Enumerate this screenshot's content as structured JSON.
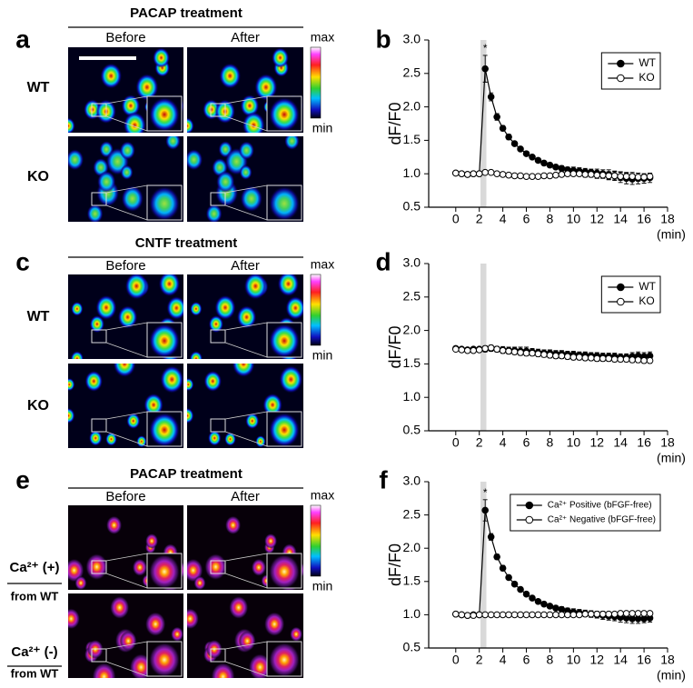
{
  "panel_labels": [
    "a",
    "b",
    "c",
    "d",
    "e",
    "f"
  ],
  "image_panels": [
    {
      "title": "PACAP treatment",
      "columns": [
        "Before",
        "After"
      ],
      "rows": [
        "WT",
        "KO"
      ],
      "scale": {
        "max": "max",
        "min": "min"
      }
    },
    {
      "title": "CNTF treatment",
      "columns": [
        "Before",
        "After"
      ],
      "rows": [
        "WT",
        "KO"
      ],
      "scale": {
        "max": "max",
        "min": "min"
      }
    },
    {
      "title": "PACAP treatment",
      "columns": [
        "Before",
        "After"
      ],
      "rows": [
        {
          "label": "Ca²⁺ (+)",
          "sublabel": "from WT"
        },
        {
          "label": "Ca²⁺ (-)",
          "sublabel": "from WT"
        }
      ],
      "scale": {
        "max": "max",
        "min": "min"
      }
    }
  ],
  "chart_data": [
    {
      "type": "line",
      "xlabel": "(min)",
      "ylabel": "dF/F0",
      "legend": "upper right",
      "highlight_x": [
        2.1,
        2.6
      ],
      "annotation": {
        "text": "*",
        "x": 2.5
      },
      "x": [
        0,
        0.5,
        1,
        1.5,
        2,
        2.5,
        3,
        3.5,
        4,
        4.5,
        5,
        5.5,
        6,
        6.5,
        7,
        7.5,
        8,
        8.5,
        9,
        9.5,
        10,
        10.5,
        11,
        11.5,
        12,
        12.5,
        13,
        13.5,
        14,
        14.5,
        15,
        15.5,
        16,
        16.5
      ],
      "xlim": [
        -2.3,
        18
      ],
      "xticks": [
        0,
        2,
        4,
        6,
        8,
        10,
        12,
        14,
        16,
        18
      ],
      "ylim": [
        0.5,
        3.0
      ],
      "yticks": [
        0.5,
        {
          "value": 1,
          "label": "1.0"
        },
        1.5,
        {
          "value": 2,
          "label": "2.0"
        },
        2.5,
        {
          "value": 3,
          "label": "3.0"
        }
      ],
      "series": [
        {
          "name": "WT",
          "color": "#000000",
          "marker": "filled",
          "values": [
            1.01,
            1.0,
            0.99,
            1.0,
            1.0,
            2.57,
            2.15,
            1.85,
            1.68,
            1.55,
            1.45,
            1.37,
            1.3,
            1.25,
            1.2,
            1.16,
            1.13,
            1.1,
            1.08,
            1.06,
            1.05,
            1.04,
            1.03,
            1.02,
            1.01,
            1.0,
            0.99,
            0.97,
            0.95,
            0.93,
            0.92,
            0.93,
            0.93,
            0.94
          ],
          "errors": [
            0.02,
            0.02,
            0.02,
            0.02,
            0.02,
            0.2,
            0.06,
            0.05,
            0.04,
            0.04,
            0.03,
            0.03,
            0.03,
            0.03,
            0.03,
            0.03,
            0.03,
            0.03,
            0.04,
            0.04,
            0.05,
            0.05,
            0.05,
            0.05,
            0.06,
            0.06,
            0.07,
            0.07,
            0.08,
            0.08,
            0.08,
            0.08,
            0.07,
            0.07
          ]
        },
        {
          "name": "KO",
          "color": "#000000",
          "marker": "open",
          "values": [
            1.01,
            1.0,
            0.99,
            1.0,
            1.0,
            1.02,
            1.02,
            1.0,
            0.99,
            0.98,
            0.97,
            0.97,
            0.96,
            0.96,
            0.96,
            0.97,
            0.97,
            0.98,
            0.99,
            1.0,
            1.0,
            1.0,
            0.99,
            0.99,
            0.98,
            0.98,
            0.97,
            0.97,
            0.96,
            0.96,
            0.96,
            0.95,
            0.95,
            0.96
          ],
          "errors": [
            0.02,
            0.02,
            0.02,
            0.02,
            0.02,
            0.02,
            0.02,
            0.02,
            0.02,
            0.02,
            0.02,
            0.02,
            0.02,
            0.02,
            0.02,
            0.02,
            0.02,
            0.02,
            0.02,
            0.02,
            0.03,
            0.03,
            0.04,
            0.04,
            0.05,
            0.05,
            0.06,
            0.06,
            0.06,
            0.06,
            0.06,
            0.06,
            0.05,
            0.05
          ]
        }
      ]
    },
    {
      "type": "line",
      "xlabel": "(min)",
      "ylabel": "dF/F0",
      "legend": "upper right",
      "highlight_x": [
        2.1,
        2.6
      ],
      "x": [
        0,
        0.5,
        1,
        1.5,
        2,
        2.5,
        3,
        3.5,
        4,
        4.5,
        5,
        5.5,
        6,
        6.5,
        7,
        7.5,
        8,
        8.5,
        9,
        9.5,
        10,
        10.5,
        11,
        11.5,
        12,
        12.5,
        13,
        13.5,
        14,
        14.5,
        15,
        15.5,
        16,
        16.5
      ],
      "xlim": [
        -2.3,
        18
      ],
      "xticks": [
        0,
        2,
        4,
        6,
        8,
        10,
        12,
        14,
        16,
        18
      ],
      "ylim": [
        0.5,
        3.0
      ],
      "yticks": [
        0.5,
        {
          "value": 1,
          "label": "1.0"
        },
        1.5,
        {
          "value": 2,
          "label": "2.0"
        },
        2.5,
        {
          "value": 3,
          "label": "3.0"
        }
      ],
      "series": [
        {
          "name": "WT",
          "color": "#000000",
          "marker": "filled",
          "values": [
            1.73,
            1.72,
            1.71,
            1.72,
            1.72,
            1.72,
            1.73,
            1.72,
            1.71,
            1.7,
            1.7,
            1.69,
            1.69,
            1.68,
            1.67,
            1.66,
            1.66,
            1.65,
            1.65,
            1.64,
            1.64,
            1.63,
            1.63,
            1.62,
            1.62,
            1.61,
            1.61,
            1.61,
            1.6,
            1.6,
            1.61,
            1.62,
            1.61,
            1.62
          ],
          "errors": [
            0.03,
            0.03,
            0.03,
            0.03,
            0.03,
            0.04,
            0.04,
            0.04,
            0.05,
            0.05,
            0.05,
            0.06,
            0.06,
            0.05,
            0.05,
            0.05,
            0.05,
            0.05,
            0.05,
            0.05,
            0.05,
            0.05,
            0.05,
            0.05,
            0.05,
            0.05,
            0.05,
            0.05,
            0.05,
            0.05,
            0.06,
            0.06,
            0.06,
            0.06
          ]
        },
        {
          "name": "KO",
          "color": "#000000",
          "marker": "open",
          "values": [
            1.72,
            1.71,
            1.7,
            1.7,
            1.71,
            1.73,
            1.74,
            1.72,
            1.7,
            1.69,
            1.68,
            1.67,
            1.66,
            1.66,
            1.65,
            1.64,
            1.63,
            1.62,
            1.62,
            1.61,
            1.6,
            1.6,
            1.59,
            1.59,
            1.58,
            1.58,
            1.58,
            1.57,
            1.57,
            1.57,
            1.56,
            1.56,
            1.55,
            1.55
          ],
          "errors": [
            0.03,
            0.03,
            0.03,
            0.03,
            0.03,
            0.04,
            0.04,
            0.04,
            0.04,
            0.04,
            0.04,
            0.04,
            0.04,
            0.04,
            0.04,
            0.04,
            0.04,
            0.04,
            0.04,
            0.04,
            0.04,
            0.04,
            0.04,
            0.04,
            0.04,
            0.04,
            0.04,
            0.04,
            0.04,
            0.04,
            0.04,
            0.04,
            0.04,
            0.04
          ]
        }
      ]
    },
    {
      "type": "line",
      "xlabel": "(min)",
      "ylabel": "dF/F0",
      "legend": "upper right",
      "highlight_x": [
        2.1,
        2.6
      ],
      "annotation": {
        "text": "*",
        "x": 2.5
      },
      "x": [
        0,
        0.5,
        1,
        1.5,
        2,
        2.5,
        3,
        3.5,
        4,
        4.5,
        5,
        5.5,
        6,
        6.5,
        7,
        7.5,
        8,
        8.5,
        9,
        9.5,
        10,
        10.5,
        11,
        11.5,
        12,
        12.5,
        13,
        13.5,
        14,
        14.5,
        15,
        15.5,
        16,
        16.5
      ],
      "xlim": [
        -2.3,
        18
      ],
      "xticks": [
        0,
        2,
        4,
        6,
        8,
        10,
        12,
        14,
        16,
        18
      ],
      "ylim": [
        0.5,
        3.0
      ],
      "yticks": [
        0.5,
        {
          "value": 1,
          "label": "1.0"
        },
        1.5,
        {
          "value": 2,
          "label": "2.0"
        },
        2.5,
        {
          "value": 3,
          "label": "3.0"
        }
      ],
      "series": [
        {
          "name": "Ca²⁺ Positive (bFGF-free)",
          "color": "#000000",
          "marker": "filled",
          "values": [
            1.01,
            1.0,
            0.99,
            1.0,
            1.0,
            2.57,
            2.17,
            1.87,
            1.7,
            1.56,
            1.46,
            1.38,
            1.31,
            1.25,
            1.2,
            1.16,
            1.13,
            1.1,
            1.08,
            1.06,
            1.04,
            1.03,
            1.02,
            1.01,
            1.0,
            0.99,
            0.98,
            0.97,
            0.96,
            0.95,
            0.94,
            0.94,
            0.94,
            0.95
          ],
          "errors": [
            0.02,
            0.02,
            0.02,
            0.02,
            0.02,
            0.16,
            0.05,
            0.04,
            0.04,
            0.03,
            0.03,
            0.03,
            0.03,
            0.03,
            0.03,
            0.03,
            0.03,
            0.03,
            0.04,
            0.04,
            0.05,
            0.05,
            0.05,
            0.05,
            0.05,
            0.06,
            0.06,
            0.06,
            0.07,
            0.07,
            0.07,
            0.07,
            0.06,
            0.06
          ]
        },
        {
          "name": "Ca²⁺ Negative (bFGF-free)",
          "color": "#000000",
          "marker": "open",
          "values": [
            1.01,
            1.0,
            0.99,
            0.99,
            1.0,
            1.0,
            1.0,
            1.0,
            1.0,
            1.0,
            1.0,
            1.0,
            1.0,
            1.0,
            1.0,
            1.0,
            1.0,
            1.0,
            1.0,
            1.0,
            1.0,
            1.0,
            1.01,
            1.01,
            1.01,
            1.01,
            1.01,
            1.01,
            1.02,
            1.02,
            1.02,
            1.02,
            1.02,
            1.02
          ],
          "errors": [
            0.01,
            0.01,
            0.01,
            0.01,
            0.01,
            0.01,
            0.01,
            0.01,
            0.01,
            0.01,
            0.01,
            0.01,
            0.01,
            0.01,
            0.01,
            0.01,
            0.01,
            0.01,
            0.01,
            0.01,
            0.01,
            0.01,
            0.02,
            0.02,
            0.02,
            0.02,
            0.02,
            0.02,
            0.02,
            0.02,
            0.02,
            0.02,
            0.02,
            0.02
          ]
        }
      ]
    }
  ]
}
